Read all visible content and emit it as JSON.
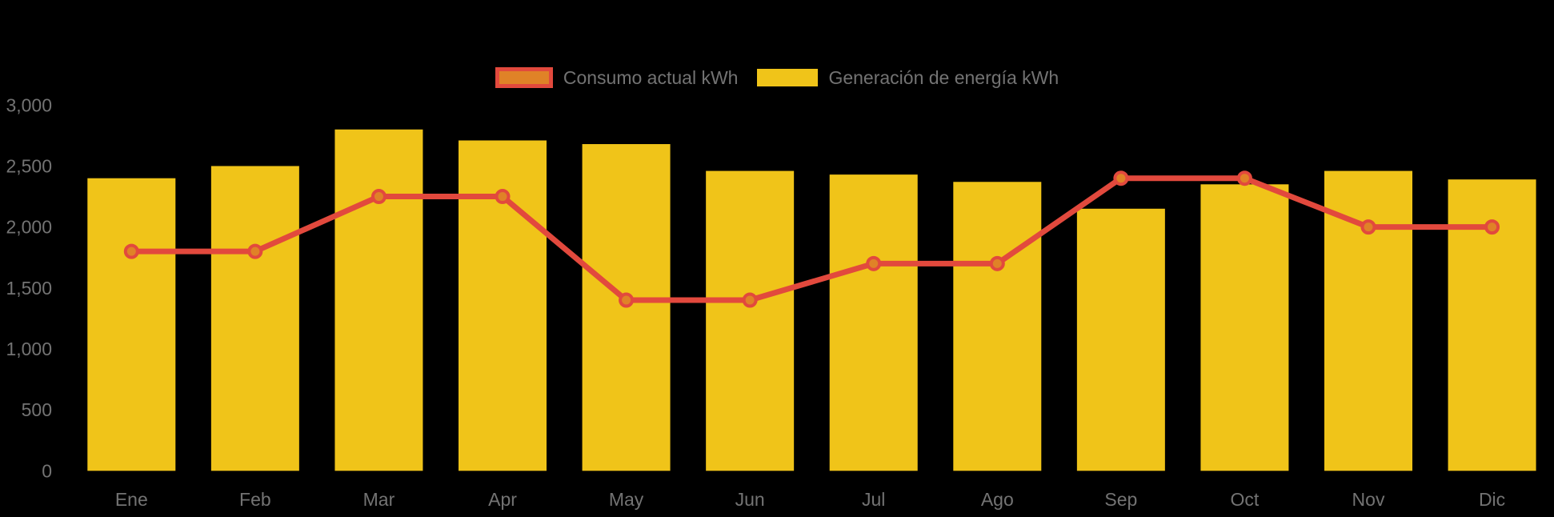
{
  "legend": {
    "items": [
      {
        "label": "Consumo actual kWh",
        "swatch_fill": "#E08227",
        "swatch_border": "#E2493D"
      },
      {
        "label": "Generación de energía kWh",
        "swatch_fill": "#F0C419",
        "swatch_border": null
      }
    ],
    "position": "top-center"
  },
  "chart_data": {
    "type": "bar+line",
    "categories": [
      "Ene",
      "Feb",
      "Mar",
      "Apr",
      "May",
      "Jun",
      "Jul",
      "Ago",
      "Sep",
      "Oct",
      "Nov",
      "Dic"
    ],
    "series": [
      {
        "name": "Generación de energía kWh",
        "type": "bar",
        "color": "#F0C419",
        "values": [
          2400,
          2500,
          2800,
          2710,
          2680,
          2460,
          2430,
          2370,
          2150,
          2350,
          2460,
          2390
        ]
      },
      {
        "name": "Consumo actual kWh",
        "type": "line",
        "color": "#E2493D",
        "marker_fill": "#E08227",
        "values": [
          1800,
          1800,
          2250,
          2250,
          1400,
          1400,
          1700,
          1700,
          2400,
          2400,
          2000,
          2000
        ]
      }
    ],
    "ylim": [
      0,
      3000
    ],
    "ytick_step": 500,
    "ytick_labels": [
      "0",
      "500",
      "1,000",
      "1,500",
      "2,000",
      "2,500",
      "3,000"
    ],
    "grid": false,
    "axis_lines": false,
    "legend_position": "top-center",
    "background_color": "#000000",
    "text_color": "#737373"
  }
}
